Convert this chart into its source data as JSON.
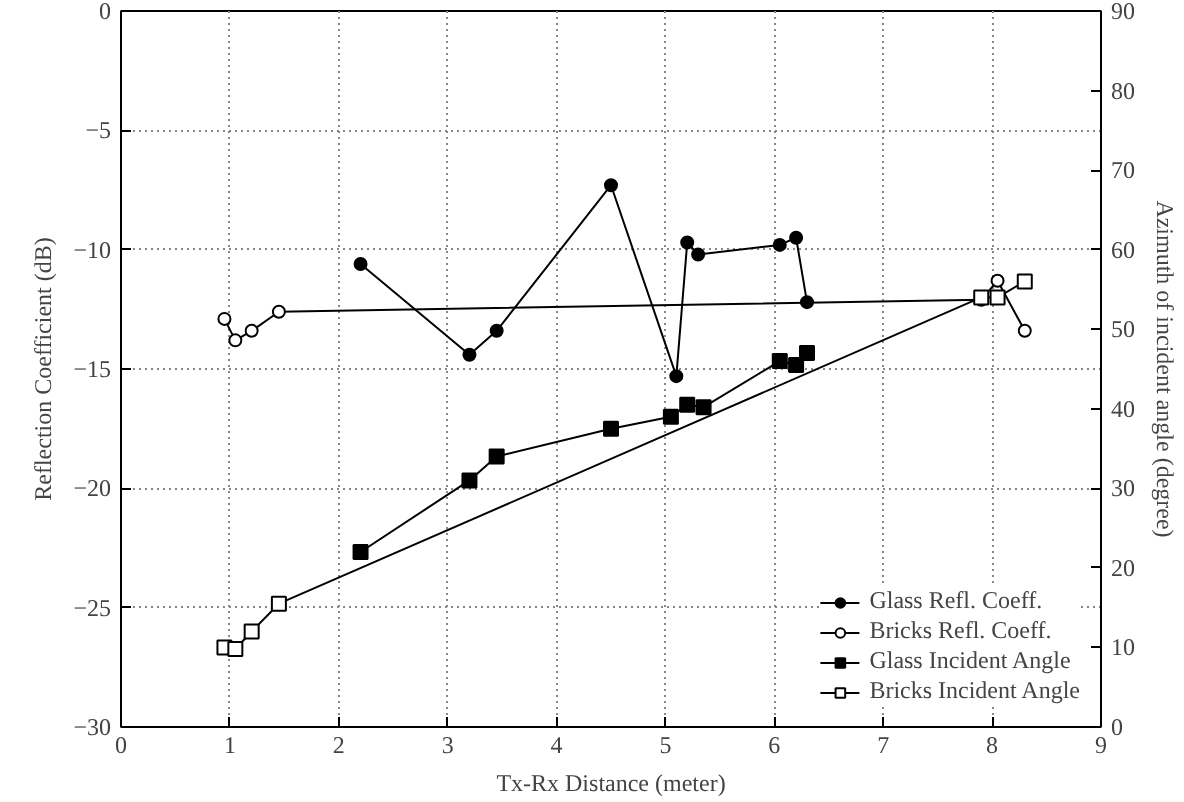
{
  "chart_data": {
    "type": "line",
    "xlabel": "Tx-Rx Distance (meter)",
    "ylabel": "Reflection Coefficient (dB)",
    "y2label": "Azimuth of incident angle (degree)",
    "xlim": [
      0,
      9
    ],
    "xticks": [
      0,
      1,
      2,
      3,
      4,
      5,
      6,
      7,
      8,
      9
    ],
    "ylim": [
      -30,
      0
    ],
    "yticks": [
      -30,
      -25,
      -20,
      -15,
      -10,
      -5,
      0
    ],
    "y2lim": [
      0,
      90
    ],
    "y2ticks": [
      0,
      10,
      20,
      30,
      40,
      50,
      60,
      70,
      80,
      90
    ],
    "grid": true,
    "legend": "bottom right",
    "line_style": "solid",
    "series": [
      {
        "name": "Glass Refl. Coeff.",
        "color": "#000000",
        "marker": "circle",
        "x": [
          2.2,
          3.2,
          3.45,
          4.5,
          5.1,
          5.2,
          5.3,
          6.05,
          6.2,
          6.3
        ],
        "values": [
          -10.6,
          -14.4,
          -13.4,
          -7.3,
          -15.3,
          -9.7,
          -10.2,
          -9.8,
          -9.5,
          -12.2
        ]
      },
      {
        "name": "Bricks Refl. Coeff.",
        "color": "#000000",
        "marker": "circle",
        "x": [
          0.95,
          1.05,
          1.2,
          1.45,
          7.9,
          8.05,
          8.3
        ],
        "values": [
          -12.9,
          -13.8,
          -13.4,
          -12.6,
          -12.1,
          -11.3,
          -13.4
        ]
      },
      {
        "name": "Glass Incident Angle",
        "color": "#000000",
        "marker": "square",
        "axis": "y2",
        "x": [
          2.2,
          3.2,
          3.45,
          4.5,
          5.05,
          5.2,
          5.35,
          6.05,
          6.2,
          6.3
        ],
        "values": [
          22,
          31,
          34,
          37.5,
          39,
          40.5,
          40.2,
          46,
          45.5,
          47
        ]
      },
      {
        "name": "Bricks Incident Angle",
        "color": "#000000",
        "marker": "square",
        "axis": "y2",
        "x": [
          0.95,
          1.05,
          1.2,
          1.45,
          7.9,
          8.05,
          8.3
        ],
        "values": [
          10,
          9.8,
          12,
          15.5,
          54,
          54,
          56
        ]
      }
    ]
  }
}
